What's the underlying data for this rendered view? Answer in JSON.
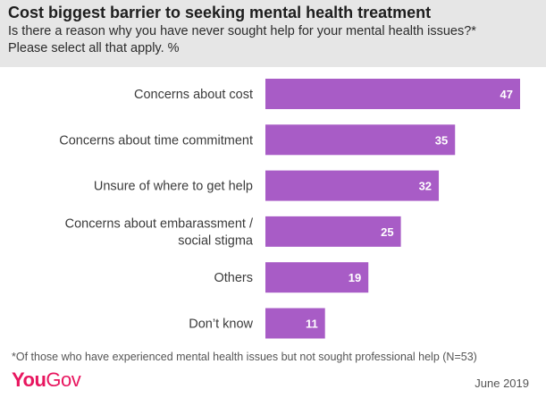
{
  "header": {
    "title": "Cost biggest barrier to seeking mental health treatment",
    "subtitle_line1": "Is there a reason why you have never sought help for your mental health issues?*",
    "subtitle_line2": "Please select all that apply. %"
  },
  "chart_data": {
    "type": "bar",
    "orientation": "horizontal",
    "title": "Cost biggest barrier to seeking mental health treatment",
    "categories": [
      [
        "Concerns about cost"
      ],
      [
        "Concerns about time commitment"
      ],
      [
        "Unsure of where to get help"
      ],
      [
        "Concerns about embarassment /",
        "social stigma"
      ],
      [
        "Others"
      ],
      [
        "Don’t know"
      ]
    ],
    "values": [
      47,
      35,
      32,
      25,
      19,
      11
    ],
    "xlim": [
      0,
      47
    ],
    "grid": false,
    "legend": "none",
    "bar_color": "#a85cc6"
  },
  "footer": {
    "footnote": "*Of those who have experienced mental health issues but not sought professional help (N=53)",
    "logo_you": "You",
    "logo_gov": "Gov",
    "logo_color": "#e8165f",
    "date": "June 2019"
  }
}
